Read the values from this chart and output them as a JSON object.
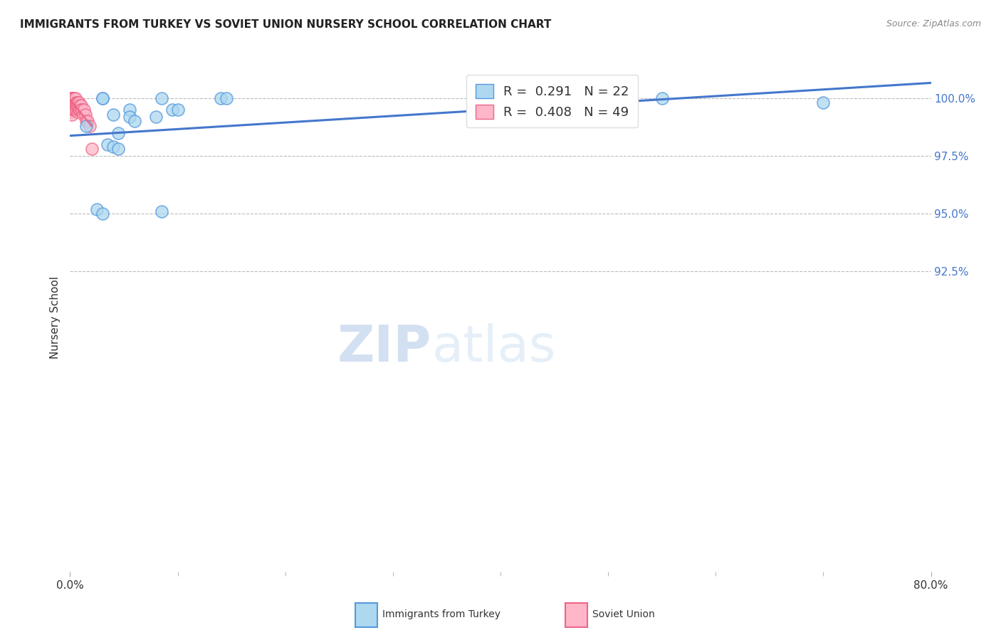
{
  "title": "IMMIGRANTS FROM TURKEY VS SOVIET UNION NURSERY SCHOOL CORRELATION CHART",
  "source": "Source: ZipAtlas.com",
  "ylabel": "Nursery School",
  "x_range": [
    0.0,
    80.0
  ],
  "y_range": [
    79.5,
    101.5
  ],
  "watermark_zip": "ZIP",
  "watermark_atlas": "atlas",
  "legend_turkey_r": "0.291",
  "legend_turkey_n": "22",
  "legend_soviet_r": "0.408",
  "legend_soviet_n": "49",
  "turkey_color": "#add8f0",
  "turkey_edge_color": "#5599dd",
  "soviet_color": "#ffb6c8",
  "soviet_edge_color": "#ee6688",
  "trend_color": "#4477cc",
  "soviet_trend_color": "#ee6688",
  "turkey_x": [
    3.0,
    3.0,
    8.5,
    14.0,
    14.5,
    4.0,
    5.5,
    8.0,
    9.5,
    10.0,
    5.5,
    6.0,
    1.5,
    4.5,
    55.0,
    3.5,
    4.0,
    4.5,
    70.0,
    2.5,
    3.0,
    8.5
  ],
  "turkey_y": [
    100.0,
    100.0,
    100.0,
    100.0,
    100.0,
    99.3,
    99.5,
    99.2,
    99.5,
    99.5,
    99.2,
    99.0,
    98.8,
    98.5,
    100.0,
    98.0,
    97.9,
    97.8,
    99.8,
    95.2,
    95.0,
    95.1
  ],
  "soviet_x": [
    0.1,
    0.1,
    0.1,
    0.1,
    0.1,
    0.15,
    0.15,
    0.15,
    0.15,
    0.2,
    0.2,
    0.2,
    0.2,
    0.2,
    0.25,
    0.3,
    0.3,
    0.3,
    0.35,
    0.35,
    0.4,
    0.4,
    0.4,
    0.45,
    0.45,
    0.5,
    0.5,
    0.55,
    0.6,
    0.6,
    0.65,
    0.7,
    0.7,
    0.7,
    0.75,
    0.8,
    0.8,
    0.9,
    0.9,
    1.0,
    1.0,
    1.1,
    1.2,
    1.3,
    1.4,
    1.5,
    1.6,
    1.8,
    2.0
  ],
  "soviet_y": [
    100.0,
    100.0,
    99.8,
    99.7,
    99.5,
    100.0,
    99.8,
    99.6,
    99.5,
    100.0,
    99.8,
    99.6,
    99.4,
    99.3,
    99.8,
    100.0,
    99.8,
    99.5,
    99.8,
    99.6,
    100.0,
    99.7,
    99.5,
    99.8,
    99.5,
    100.0,
    99.7,
    99.8,
    99.7,
    99.5,
    99.8,
    99.8,
    99.6,
    99.4,
    99.5,
    99.8,
    99.5,
    99.7,
    99.5,
    99.7,
    99.5,
    99.5,
    99.3,
    99.5,
    99.3,
    99.0,
    99.0,
    98.8,
    97.8
  ],
  "y_ticks": [
    92.5,
    95.0,
    97.5,
    100.0
  ],
  "y_tick_labels": [
    "92.5%",
    "95.0%",
    "97.5%",
    "100.0%"
  ]
}
